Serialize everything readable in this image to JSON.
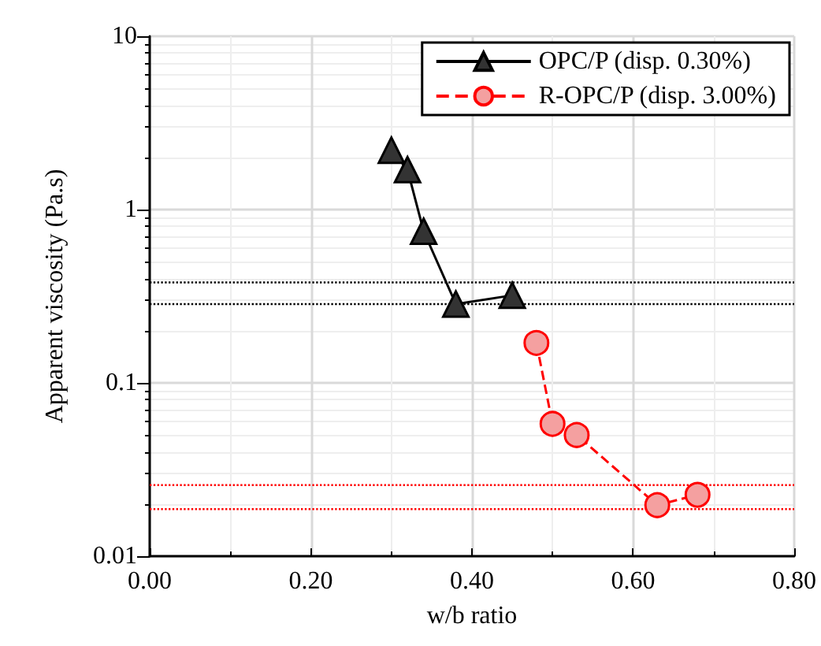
{
  "chart_data": {
    "type": "line",
    "xlabel": "w/b ratio",
    "ylabel": "Apparent viscosity (Pa.s)",
    "xlim": [
      0,
      0.8
    ],
    "xticks": [
      {
        "value": 0,
        "label": "0.00"
      },
      {
        "value": 0.2,
        "label": "0.20"
      },
      {
        "value": 0.4,
        "label": "0.40"
      },
      {
        "value": 0.6,
        "label": "0.60"
      },
      {
        "value": 0.8,
        "label": "0.80"
      }
    ],
    "ylim": [
      0.01,
      10
    ],
    "yticks": [
      0.01,
      0.1,
      1,
      10
    ],
    "log": "y",
    "grid": true,
    "legend": "top right",
    "series": [
      {
        "name": "OPC/P (disp. 0.30%)",
        "color": "#000000",
        "marker": "triangle",
        "line_style": "solid",
        "x": [
          0.3,
          0.32,
          0.34,
          0.38,
          0.45
        ],
        "values": [
          2.2,
          1.7,
          0.75,
          0.285,
          0.32
        ]
      },
      {
        "name": "R-OPC/P (disp. 3.00%)",
        "color": "#ff0000",
        "marker": "circle",
        "line_style": "dashed",
        "x": [
          0.48,
          0.5,
          0.53,
          0.63,
          0.68
        ],
        "values": [
          0.17,
          0.058,
          0.05,
          0.0197,
          0.0226
        ]
      }
    ],
    "ref_lines": [
      {
        "axis": "y",
        "value": 0.38,
        "color": "#000000",
        "line_style": "dotted"
      },
      {
        "axis": "y",
        "value": 0.285,
        "color": "#000000",
        "line_style": "dotted"
      },
      {
        "axis": "y",
        "value": 0.0257,
        "color": "#ff0000",
        "line_style": "dotted"
      },
      {
        "axis": "y",
        "value": 0.0187,
        "color": "#ff0000",
        "line_style": "dotted"
      }
    ]
  }
}
